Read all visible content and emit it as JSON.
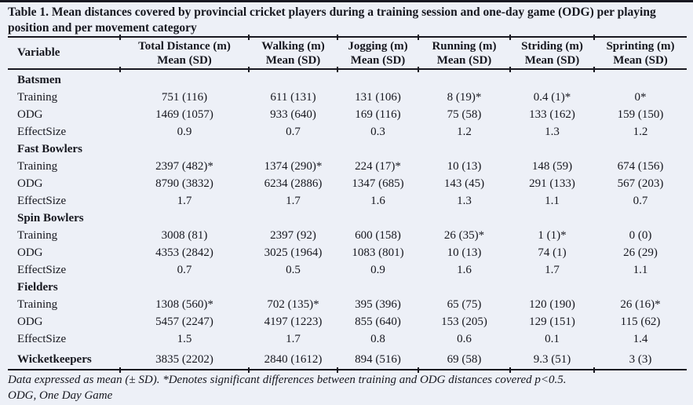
{
  "title": {
    "line1": "Table 1. Mean distances covered by provincial  cricket players during  a training session and one-day game (ODG) per playing",
    "line2": "position and per movement category"
  },
  "table": {
    "variable_header": "Variable",
    "columns": [
      {
        "label": "Total Distance (m)",
        "sub": "Mean (SD)"
      },
      {
        "label": "Walking (m)",
        "sub": "Mean (SD)"
      },
      {
        "label": "Jogging (m)",
        "sub": "Mean (SD)"
      },
      {
        "label": "Running (m)",
        "sub": "Mean (SD)"
      },
      {
        "label": "Striding (m)",
        "sub": "Mean (SD)"
      },
      {
        "label": "Sprinting (m)",
        "sub": "Mean (SD)"
      }
    ],
    "sections": [
      {
        "name": "Batsmen",
        "rows": [
          {
            "label": "Training",
            "values": [
              "751 (116)",
              "611 (131)",
              "131 (106)",
              "8 (19)*",
              "0.4 (1)*",
              "0*"
            ]
          },
          {
            "label": "ODG",
            "values": [
              "1469 (1057)",
              "933 (640)",
              "169 (116)",
              "75 (58)",
              "133 (162)",
              "159 (150)"
            ]
          },
          {
            "label": "EffectSize",
            "values": [
              "0.9",
              "0.7",
              "0.3",
              "1.2",
              "1.3",
              "1.2"
            ]
          }
        ]
      },
      {
        "name": "Fast Bowlers",
        "rows": [
          {
            "label": "Training",
            "values": [
              "2397 (482)*",
              "1374 (290)*",
              "224 (17)*",
              "10 (13)",
              "148 (59)",
              "674 (156)"
            ]
          },
          {
            "label": "ODG",
            "values": [
              "8790 (3832)",
              "6234 (2886)",
              "1347 (685)",
              "143 (45)",
              "291 (133)",
              "567 (203)"
            ]
          },
          {
            "label": "EffectSize",
            "values": [
              "1.7",
              "1.7",
              "1.6",
              "1.3",
              "1.1",
              "0.7"
            ]
          }
        ]
      },
      {
        "name": "Spin Bowlers",
        "rows": [
          {
            "label": "Training",
            "values": [
              "3008 (81)",
              "2397 (92)",
              "600 (158)",
              "26 (35)*",
              "1 (1)*",
              "0 (0)"
            ]
          },
          {
            "label": "ODG",
            "values": [
              "4353 (2842)",
              "3025 (1964)",
              "1083 (801)",
              "10 (13)",
              "74 (1)",
              "26 (29)"
            ]
          },
          {
            "label": "EffectSize",
            "values": [
              "0.7",
              "0.5",
              "0.9",
              "1.6",
              "1.7",
              "1.1"
            ]
          }
        ]
      },
      {
        "name": "Fielders",
        "rows": [
          {
            "label": "Training",
            "values": [
              "1308 (560)*",
              "702 (135)*",
              "395 (396)",
              "65 (75)",
              "120 (190)",
              "26 (16)*"
            ]
          },
          {
            "label": "ODG",
            "values": [
              "5457 (2247)",
              "4197 (1223)",
              "855 (640)",
              "153 (205)",
              "129 (151)",
              "115 (62)"
            ]
          },
          {
            "label": "EffectSize",
            "values": [
              "1.5",
              "1.7",
              "0.8",
              "0.6",
              "0.1",
              "1.4"
            ]
          }
        ]
      }
    ],
    "summary_row": {
      "label": "Wicketkeepers",
      "values": [
        "3835 (2202)",
        "2840 (1612)",
        "894 (516)",
        "69 (58)",
        "9.3 (51)",
        "3 (3)"
      ]
    }
  },
  "footnotes": {
    "line1": "Data expressed as mean (± SD). *Denotes significant differences between training and ODG distances covered p<0.5.",
    "line2": "ODG, One Day Game"
  },
  "colors": {
    "background": "#edf0f7",
    "text": "#16171f",
    "rule": "#181821"
  }
}
